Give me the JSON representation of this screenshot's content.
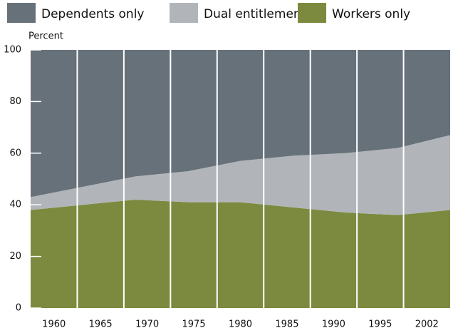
{
  "chart_data": {
    "type": "stacked_area",
    "y_label": "Percent",
    "categories": [
      "1960",
      "1965",
      "1970",
      "1975",
      "1980",
      "1985",
      "1990",
      "1995",
      "2002"
    ],
    "series": [
      {
        "name": "Workers only",
        "color": "#7b8a3e",
        "values": [
          38,
          40,
          42,
          41,
          41,
          39,
          37,
          36,
          38
        ]
      },
      {
        "name": "Dual entitlement",
        "color": "#b1b5ba",
        "values": [
          5,
          7,
          9,
          12,
          16,
          20,
          23,
          26,
          29
        ]
      },
      {
        "name": "Dependents only",
        "color": "#67717a",
        "values": [
          57,
          53,
          49,
          47,
          43,
          41,
          40,
          38,
          33
        ]
      }
    ],
    "legend_order": [
      2,
      1,
      0
    ],
    "ylim": [
      0,
      100
    ],
    "yticks": [
      0,
      20,
      40,
      60,
      80,
      100
    ]
  }
}
